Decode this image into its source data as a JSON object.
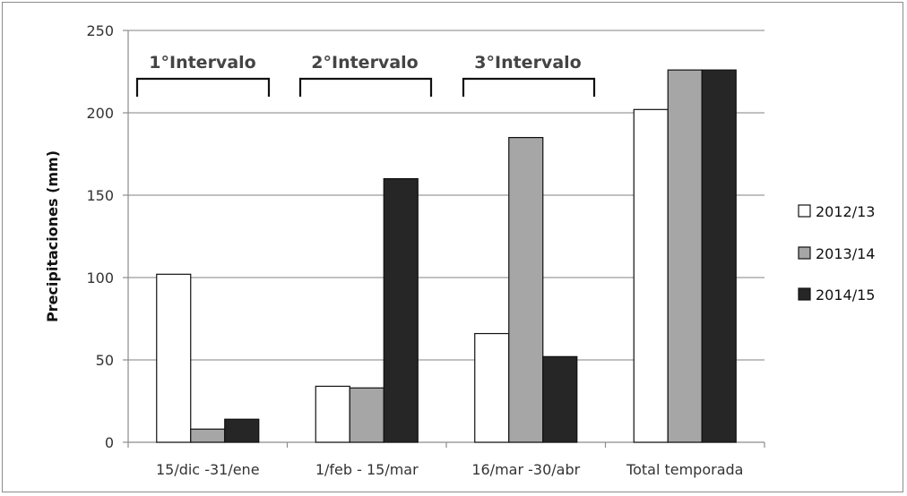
{
  "chart_data": {
    "type": "bar",
    "categories": [
      "15/dic -31/ene",
      "1/feb - 15/mar",
      "16/mar -30/abr",
      "Total temporada"
    ],
    "series": [
      {
        "name": "2012/13",
        "values": [
          102,
          34,
          66,
          202
        ],
        "color": "#ffffff"
      },
      {
        "name": "2013/14",
        "values": [
          8,
          33,
          185,
          226
        ],
        "color": "#a6a6a6"
      },
      {
        "name": "2014/15",
        "values": [
          14,
          160,
          52,
          226
        ],
        "color": "#262626"
      }
    ],
    "ylabel": "Precipitaciones (mm)",
    "ylim": [
      0,
      250
    ],
    "yticks": [
      0,
      50,
      100,
      150,
      200,
      250
    ],
    "grid": true,
    "legend": "right",
    "annotations": [
      "1°Intervalo",
      "2°Intervalo",
      "3°Intervalo"
    ]
  }
}
